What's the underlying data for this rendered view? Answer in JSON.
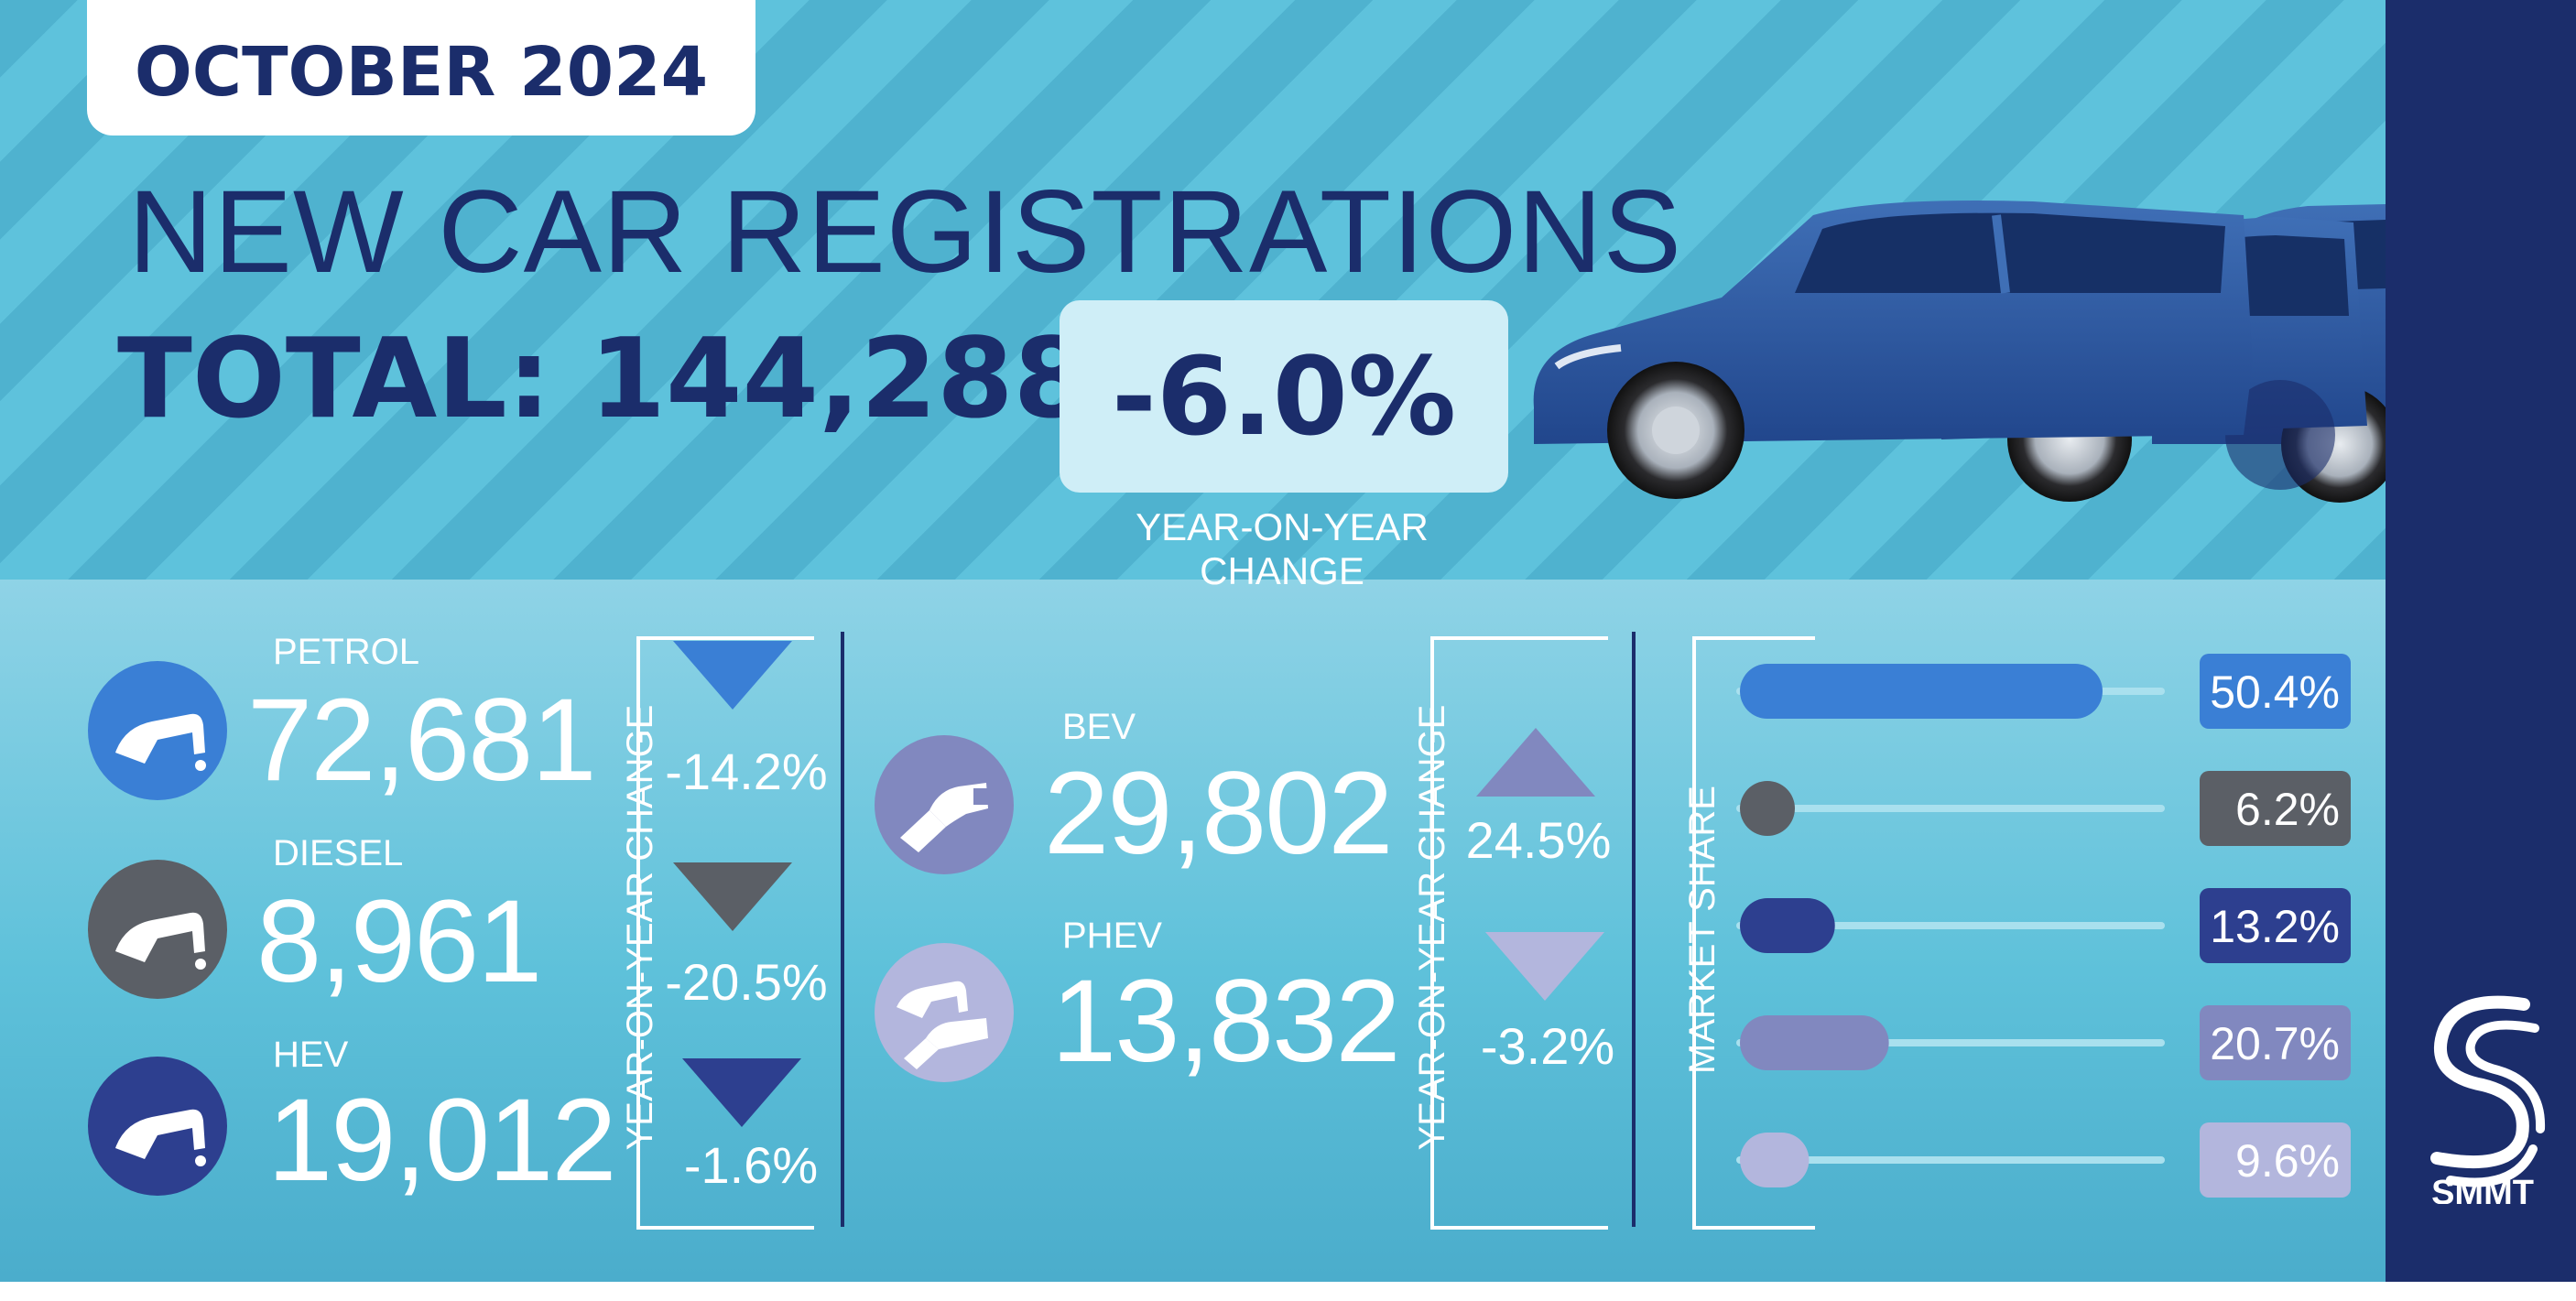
{
  "header": {
    "month": "OCTOBER 2024",
    "title": "NEW CAR REGISTRATIONS",
    "total_label": "TOTAL: 144,288",
    "yoy_value": "-6.0%",
    "yoy_caption": "YEAR-ON-YEAR CHANGE"
  },
  "fuels": [
    {
      "label": "PETROL",
      "value": "72,681",
      "change": "-14.2%",
      "direction": "down",
      "color": "#3a7fd5",
      "icon": "fuel-pump-icon"
    },
    {
      "label": "DIESEL",
      "value": "8,961",
      "change": "-20.5%",
      "direction": "down",
      "color": "#5b5f66",
      "icon": "fuel-pump-icon"
    },
    {
      "label": "HEV",
      "value": "19,012",
      "change": "-1.6%",
      "direction": "down",
      "color": "#2d3f8f",
      "icon": "fuel-pump-icon"
    },
    {
      "label": "BEV",
      "value": "29,802",
      "change": "24.5%",
      "direction": "up",
      "color": "#8188bf",
      "icon": "ev-plug-icon"
    },
    {
      "label": "PHEV",
      "value": "13,832",
      "change": "-3.2%",
      "direction": "down",
      "color": "#b3b6dd",
      "icon": "plug-and-pump-icon"
    }
  ],
  "axis_labels": {
    "yoy_left": "YEAR-ON-YEAR CHANGE",
    "yoy_right": "YEAR-ON-YEAR CHANGE",
    "market_share": "MARKET SHARE"
  },
  "chart_data": {
    "type": "bar",
    "title": "",
    "ylabel": "MARKET SHARE",
    "categories": [
      "PETROL",
      "DIESEL",
      "HEV",
      "BEV",
      "PHEV"
    ],
    "values": [
      50.4,
      6.2,
      13.2,
      20.7,
      9.6
    ],
    "labels": [
      "50.4%",
      "6.2%",
      "13.2%",
      "20.7%",
      "9.6%"
    ],
    "colors": [
      "#3a7fd5",
      "#5b5f66",
      "#2d3f8f",
      "#8188bf",
      "#b3b6dd"
    ],
    "xlim": [
      0,
      100
    ],
    "orientation": "horizontal"
  },
  "brand": {
    "logo_text": "SMMT"
  }
}
